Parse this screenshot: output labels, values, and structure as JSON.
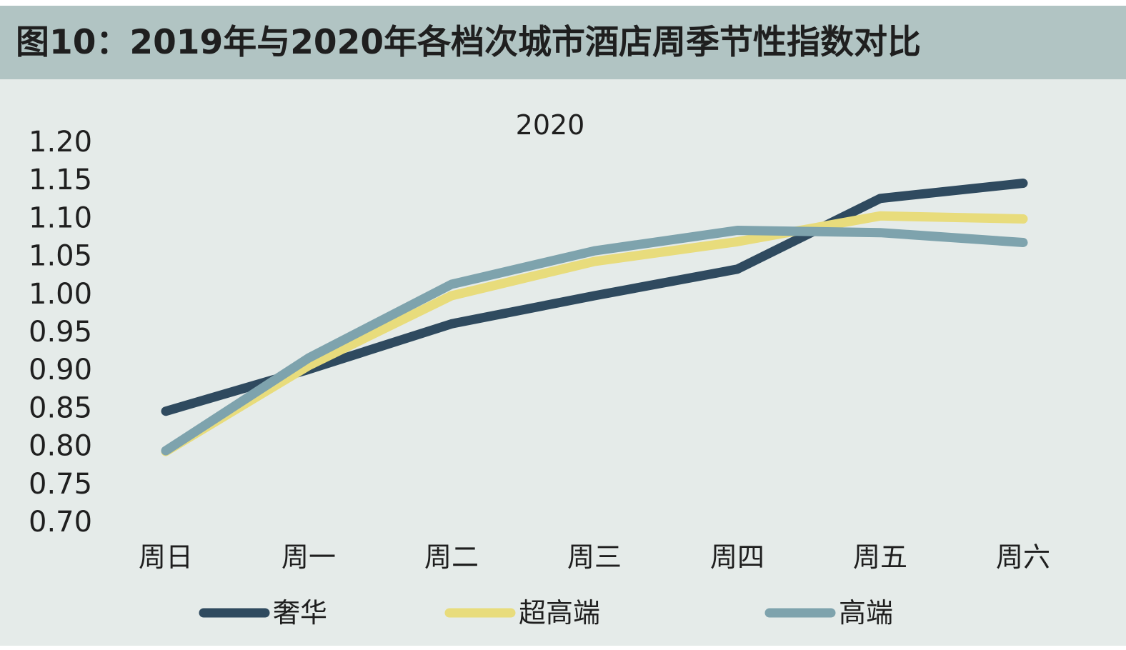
{
  "header": {
    "title": "图10：2019年与2020年各档次城市酒店周季节性指数对比"
  },
  "colors": {
    "header_bg": "#b1c4c3",
    "plot_bg": "#e5ebe9",
    "luxury": "#2f4a5f",
    "upper_upscale": "#e8dc7c",
    "upscale": "#7ea3ad"
  },
  "chart_data": {
    "type": "line",
    "title": "2020",
    "xlabel": "",
    "ylabel": "",
    "categories": [
      "周日",
      "周一",
      "周二",
      "周三",
      "周四",
      "周五",
      "周六"
    ],
    "ylim": [
      0.7,
      1.2
    ],
    "ytick_step": 0.05,
    "y_tick_labels": [
      "1.20",
      "1.15",
      "1.10",
      "1.05",
      "1.00",
      "0.95",
      "0.90",
      "0.85",
      "0.80",
      "0.75",
      "0.70"
    ],
    "grid": false,
    "legend_position": "bottom",
    "series": [
      {
        "name": "奢华",
        "color": "#2f4a5f",
        "values": [
          0.845,
          0.9,
          0.96,
          0.997,
          1.032,
          1.125,
          1.145
        ]
      },
      {
        "name": "超高端",
        "color": "#e8dc7c",
        "values": [
          0.792,
          0.905,
          0.997,
          1.042,
          1.068,
          1.102,
          1.098
        ]
      },
      {
        "name": "高端",
        "color": "#7ea3ad",
        "values": [
          0.793,
          0.915,
          1.012,
          1.056,
          1.083,
          1.08,
          1.067
        ]
      }
    ]
  }
}
